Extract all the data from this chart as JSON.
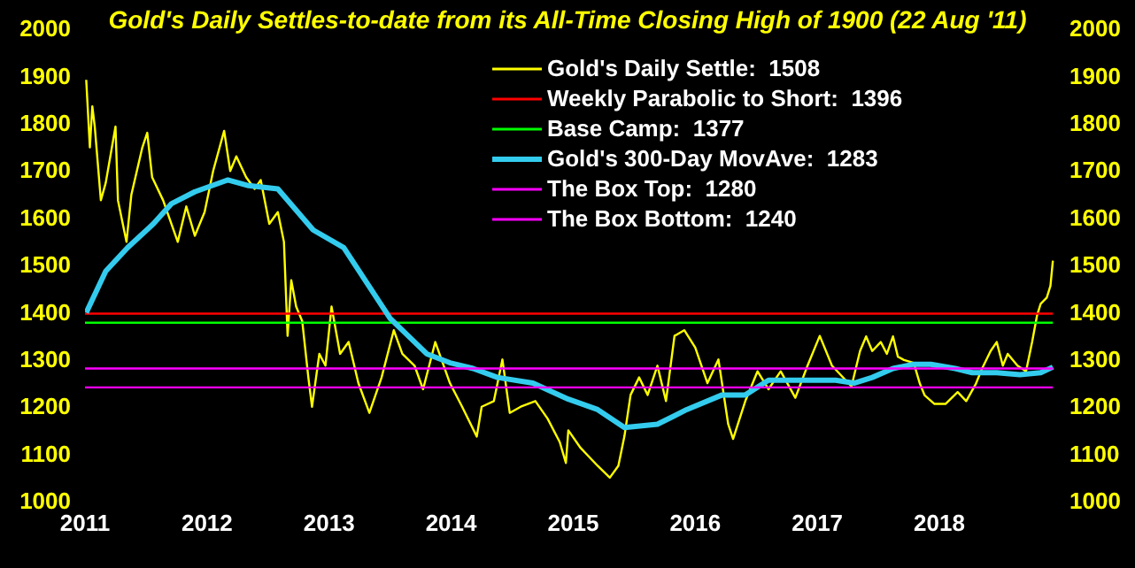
{
  "chart_data": {
    "type": "line",
    "title": "Gold's Daily Settles-to-date from its All-Time Closing High of 1900 (22 Aug '11)",
    "xlim": [
      2011,
      2018.95
    ],
    "xticks": [
      2011,
      2012,
      2013,
      2014,
      2015,
      2016,
      2017,
      2018
    ],
    "ylim": [
      1000,
      2000
    ],
    "yticks": [
      1000,
      1100,
      1200,
      1300,
      1400,
      1500,
      1600,
      1700,
      1800,
      1900,
      2000
    ],
    "y2lim": [
      1000,
      2000
    ],
    "y2ticks": [
      1000,
      1100,
      1200,
      1300,
      1400,
      1500,
      1600,
      1700,
      1800,
      1900,
      2000
    ],
    "legend": "top right",
    "series": [
      {
        "name": "Gold's Daily Settle:  1508",
        "color": "#ffff00",
        "x": [
          2011.01,
          2011.04,
          2011.06,
          2011.08,
          2011.13,
          2011.17,
          2011.25,
          2011.27,
          2011.34,
          2011.38,
          2011.47,
          2011.51,
          2011.55,
          2011.64,
          2011.76,
          2011.83,
          2011.9,
          2011.98,
          2012.05,
          2012.14,
          2012.19,
          2012.24,
          2012.32,
          2012.39,
          2012.44,
          2012.51,
          2012.58,
          2012.63,
          2012.66,
          2012.69,
          2012.73,
          2012.78,
          2012.83,
          2012.86,
          2012.92,
          2012.97,
          2013.02,
          2013.09,
          2013.16,
          2013.24,
          2013.33,
          2013.43,
          2013.53,
          2013.6,
          2013.7,
          2013.77,
          2013.87,
          2013.99,
          2014.09,
          2014.21,
          2014.25,
          2014.35,
          2014.42,
          2014.48,
          2014.57,
          2014.69,
          2014.79,
          2014.89,
          2014.94,
          2014.96,
          2015.06,
          2015.2,
          2015.3,
          2015.37,
          2015.42,
          2015.47,
          2015.54,
          2015.61,
          2015.69,
          2015.76,
          2015.83,
          2015.91,
          2016.0,
          2016.1,
          2016.19,
          2016.27,
          2016.31,
          2016.41,
          2016.51,
          2016.6,
          2016.7,
          2016.82,
          2016.92,
          2017.02,
          2017.12,
          2017.28,
          2017.35,
          2017.4,
          2017.45,
          2017.52,
          2017.57,
          2017.62,
          2017.66,
          2017.71,
          2017.79,
          2017.84,
          2017.88,
          2017.96,
          2018.05,
          2018.15,
          2018.22,
          2018.3,
          2018.35,
          2018.42,
          2018.47,
          2018.52,
          2018.56,
          2018.64,
          2018.71,
          2018.76,
          2018.8,
          2018.83,
          2018.88,
          2018.91,
          2018.93
        ],
        "values": [
          1891,
          1748,
          1835,
          1792,
          1636,
          1673,
          1792,
          1636,
          1548,
          1648,
          1748,
          1779,
          1685,
          1636,
          1548,
          1623,
          1561,
          1611,
          1698,
          1783,
          1698,
          1729,
          1685,
          1660,
          1679,
          1586,
          1611,
          1548,
          1349,
          1467,
          1411,
          1380,
          1261,
          1199,
          1311,
          1286,
          1411,
          1311,
          1336,
          1249,
          1186,
          1261,
          1361,
          1311,
          1286,
          1236,
          1336,
          1249,
          1199,
          1136,
          1199,
          1211,
          1299,
          1186,
          1199,
          1211,
          1174,
          1124,
          1080,
          1149,
          1112,
          1074,
          1049,
          1074,
          1137,
          1224,
          1261,
          1224,
          1286,
          1211,
          1349,
          1361,
          1324,
          1249,
          1299,
          1162,
          1131,
          1211,
          1274,
          1236,
          1274,
          1218,
          1286,
          1349,
          1286,
          1242,
          1317,
          1348,
          1317,
          1336,
          1311,
          1348,
          1305,
          1298,
          1292,
          1248,
          1223,
          1205,
          1205,
          1230,
          1211,
          1248,
          1280,
          1317,
          1336,
          1286,
          1311,
          1286,
          1274,
          1336,
          1392,
          1417,
          1430,
          1455,
          1508
        ]
      },
      {
        "name": "Weekly Parabolic to Short:  1396",
        "color": "#ff0000",
        "x": [
          2011,
          2018.93
        ],
        "values": [
          1396,
          1396
        ]
      },
      {
        "name": "Base Camp:  1377",
        "color": "#00ff00",
        "x": [
          2011,
          2018.93
        ],
        "values": [
          1377,
          1377
        ]
      },
      {
        "name": "Gold's 300-Day MovAve:  1283",
        "color": "#33ccee",
        "x": [
          2011.01,
          2011.17,
          2011.35,
          2011.56,
          2011.71,
          2011.9,
          2012.17,
          2012.34,
          2012.58,
          2012.87,
          2013.12,
          2013.31,
          2013.5,
          2013.8,
          2013.99,
          2014.18,
          2014.38,
          2014.67,
          2014.96,
          2015.2,
          2015.42,
          2015.69,
          2015.93,
          2016.22,
          2016.41,
          2016.6,
          2016.9,
          2017.15,
          2017.3,
          2017.45,
          2017.62,
          2017.79,
          2017.93,
          2018.13,
          2018.27,
          2018.47,
          2018.66,
          2018.83,
          2018.93
        ],
        "values": [
          1398,
          1486,
          1536,
          1586,
          1629,
          1654,
          1679,
          1667,
          1660,
          1573,
          1536,
          1461,
          1386,
          1311,
          1292,
          1280,
          1261,
          1249,
          1215,
          1193,
          1155,
          1162,
          1193,
          1224,
          1224,
          1255,
          1255,
          1255,
          1249,
          1261,
          1280,
          1289,
          1289,
          1280,
          1271,
          1271,
          1267,
          1271,
          1283
        ]
      },
      {
        "name": "The Box Top:  1280",
        "color": "#ff00ff",
        "x": [
          2011,
          2018.93
        ],
        "values": [
          1280,
          1280
        ]
      },
      {
        "name": "The Box Bottom:  1240",
        "color": "#ff00ff",
        "x": [
          2011,
          2018.93
        ],
        "values": [
          1240,
          1240
        ]
      }
    ]
  }
}
